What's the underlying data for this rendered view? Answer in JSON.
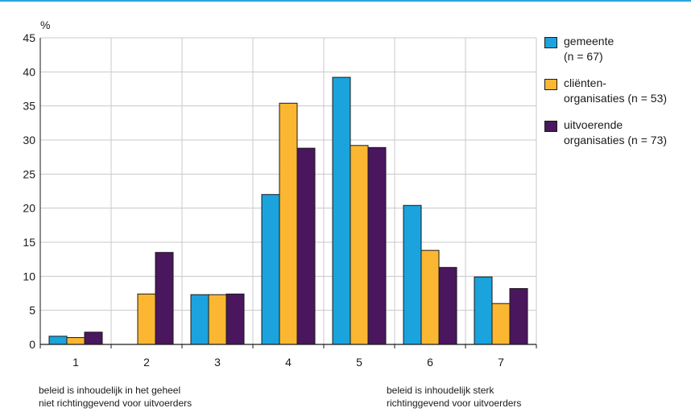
{
  "chart_data": {
    "type": "bar",
    "unit_label": "%",
    "categories": [
      "1",
      "2",
      "3",
      "4",
      "5",
      "6",
      "7"
    ],
    "ylim": [
      0,
      45
    ],
    "yticks": [
      0,
      5,
      10,
      15,
      20,
      25,
      30,
      35,
      40,
      45
    ],
    "grid": true,
    "legend_position": "right",
    "series": [
      {
        "name": "gemeente",
        "name_line2": "(n = 67)",
        "color": "#1aa3dd",
        "values": [
          1.2,
          0.0,
          7.3,
          22.0,
          39.2,
          20.4,
          9.9
        ]
      },
      {
        "name": "cliënten-",
        "name_line2": "organisaties (n = 53)",
        "color": "#fbb732",
        "values": [
          1.0,
          7.4,
          7.3,
          35.4,
          29.2,
          13.8,
          6.0
        ]
      },
      {
        "name": "uitvoerende",
        "name_line2": "organisaties (n = 73)",
        "color": "#4a165e",
        "values": [
          1.8,
          13.5,
          7.4,
          28.8,
          28.9,
          11.3,
          8.2
        ]
      }
    ],
    "annotations": {
      "left": {
        "line1": "beleid is inhoudelijk in het geheel",
        "line2": "niet richtinggevend voor uitvoerders"
      },
      "right": {
        "line1": "beleid is inhoudelijk sterk",
        "line2": "richtinggevend voor uitvoerders"
      }
    }
  }
}
